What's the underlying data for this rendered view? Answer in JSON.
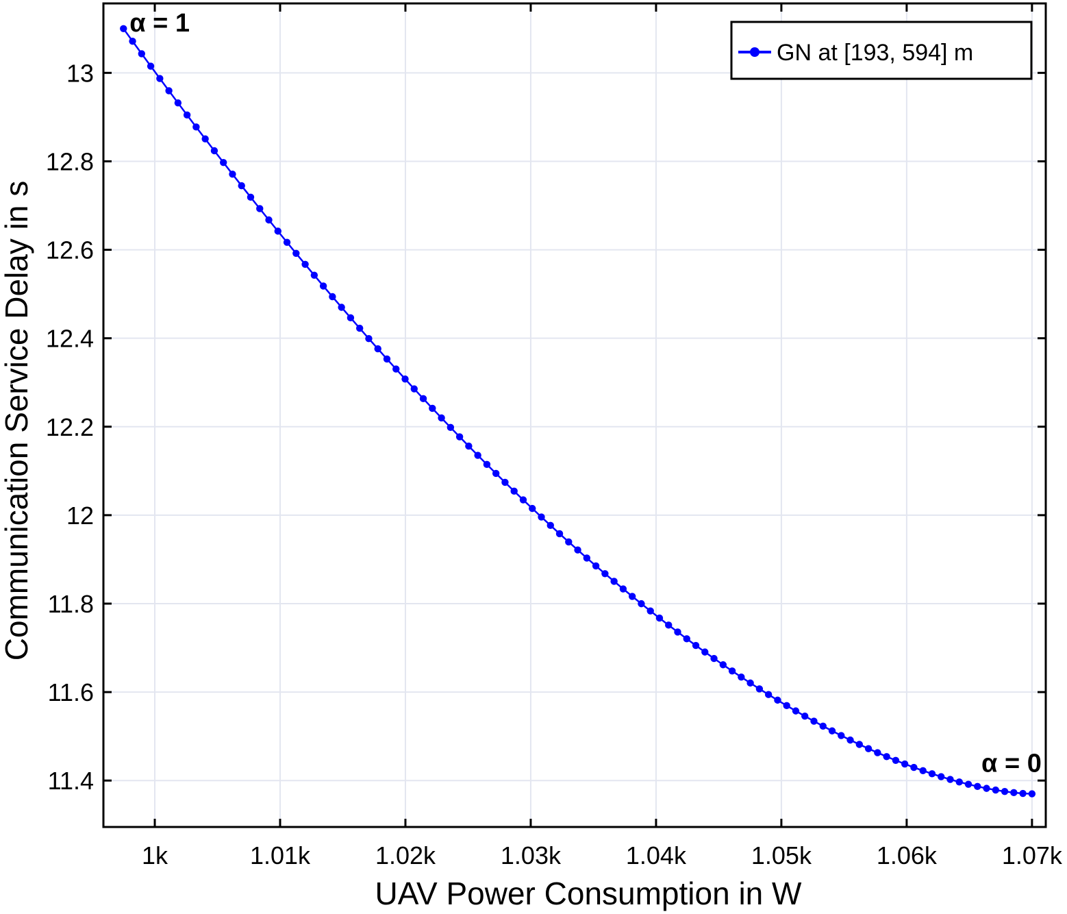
{
  "chart_data": {
    "type": "line",
    "xlabel": "UAV Power Consumption in W",
    "ylabel": "Communication Service Delay in s",
    "xlim": [
      995.9,
      1071.1
    ],
    "ylim": [
      11.295,
      13.157
    ],
    "xticks": [
      1000,
      1010,
      1020,
      1030,
      1040,
      1050,
      1060,
      1070
    ],
    "xtick_labels": [
      "1k",
      "1.01k",
      "1.02k",
      "1.03k",
      "1.04k",
      "1.05k",
      "1.06k",
      "1.07k"
    ],
    "yticks": [
      11.4,
      11.6,
      11.8,
      12.0,
      12.2,
      12.4,
      12.6,
      12.8,
      13.0
    ],
    "ytick_labels": [
      "11.4",
      "11.6",
      "11.8",
      "12",
      "12.2",
      "12.4",
      "12.6",
      "12.8",
      "13"
    ],
    "grid": true,
    "legend_position": "top-right",
    "series": [
      {
        "name": "GN at [193, 594] m",
        "color": "#0000ff",
        "marker": "circle",
        "x_range": [
          997.5,
          1070.0
        ],
        "y_range": [
          13.1,
          11.37
        ],
        "num_points": 101
      }
    ],
    "annotations": [
      {
        "text": "α = 1",
        "x": 997.5,
        "y": 13.1
      },
      {
        "text": "α = 0",
        "x": 1070.0,
        "y": 11.37
      }
    ]
  }
}
